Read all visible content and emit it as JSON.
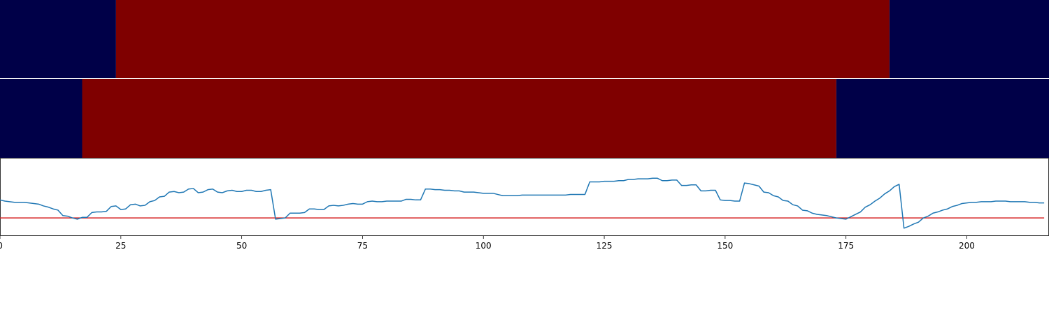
{
  "chart_data": [
    {
      "type": "heatmap",
      "panel": "top",
      "xlim": [
        0,
        217
      ],
      "colors": {
        "low": "#000048",
        "high": "#7f0000"
      },
      "segments": [
        {
          "start": 0,
          "end": 24,
          "level": "low"
        },
        {
          "start": 24,
          "end": 184,
          "level": "high"
        },
        {
          "start": 184,
          "end": 217,
          "level": "low"
        }
      ]
    },
    {
      "type": "heatmap",
      "panel": "middle",
      "xlim": [
        0,
        217
      ],
      "colors": {
        "low": "#000048",
        "high": "#7f0000"
      },
      "segments": [
        {
          "start": 0,
          "end": 17,
          "level": "low"
        },
        {
          "start": 17,
          "end": 173,
          "level": "high"
        },
        {
          "start": 173,
          "end": 217,
          "level": "low"
        }
      ]
    },
    {
      "type": "line",
      "panel": "bottom",
      "xlim": [
        0,
        217
      ],
      "ylim": [
        -0.3,
        1.0
      ],
      "x_ticks": [
        0,
        25,
        50,
        75,
        100,
        125,
        150,
        175,
        200
      ],
      "threshold": 0,
      "colors": {
        "line": "#1f77b4",
        "threshold": "#d62728"
      },
      "x": [
        0,
        1,
        2,
        3,
        4,
        5,
        6,
        7,
        8,
        9,
        10,
        11,
        12,
        13,
        14,
        15,
        16,
        17,
        18,
        19,
        20,
        21,
        22,
        23,
        24,
        25,
        26,
        27,
        28,
        29,
        30,
        31,
        32,
        33,
        34,
        35,
        36,
        37,
        38,
        39,
        40,
        41,
        42,
        43,
        44,
        45,
        46,
        47,
        48,
        49,
        50,
        51,
        52,
        53,
        54,
        55,
        56,
        57,
        58,
        59,
        60,
        61,
        62,
        63,
        64,
        65,
        66,
        67,
        68,
        69,
        70,
        71,
        72,
        73,
        74,
        75,
        76,
        77,
        78,
        79,
        80,
        81,
        82,
        83,
        84,
        85,
        86,
        87,
        88,
        89,
        90,
        91,
        92,
        93,
        94,
        95,
        96,
        97,
        98,
        99,
        100,
        101,
        102,
        103,
        104,
        105,
        106,
        107,
        108,
        109,
        110,
        111,
        112,
        113,
        114,
        115,
        116,
        117,
        118,
        119,
        120,
        121,
        122,
        123,
        124,
        125,
        126,
        127,
        128,
        129,
        130,
        131,
        132,
        133,
        134,
        135,
        136,
        137,
        138,
        139,
        140,
        141,
        142,
        143,
        144,
        145,
        146,
        147,
        148,
        149,
        150,
        151,
        152,
        153,
        154,
        155,
        156,
        157,
        158,
        159,
        160,
        161,
        162,
        163,
        164,
        165,
        166,
        167,
        168,
        169,
        170,
        171,
        172,
        173,
        174,
        175,
        176,
        177,
        178,
        179,
        180,
        181,
        182,
        183,
        184,
        185,
        186,
        187,
        188,
        189,
        190,
        191,
        192,
        193,
        194,
        195,
        196,
        197,
        198,
        199,
        200,
        201,
        202,
        203,
        204,
        205,
        206,
        207,
        208,
        209,
        210,
        211,
        212,
        213,
        214,
        215,
        216
      ],
      "y": [
        0.3,
        0.28,
        0.27,
        0.26,
        0.26,
        0.26,
        0.25,
        0.24,
        0.23,
        0.2,
        0.18,
        0.15,
        0.13,
        0.04,
        0.03,
        0.0,
        -0.02,
        0.01,
        0.01,
        0.09,
        0.1,
        0.1,
        0.11,
        0.19,
        0.2,
        0.14,
        0.15,
        0.22,
        0.23,
        0.2,
        0.21,
        0.27,
        0.29,
        0.35,
        0.36,
        0.43,
        0.44,
        0.42,
        0.43,
        0.48,
        0.49,
        0.42,
        0.43,
        0.47,
        0.48,
        0.43,
        0.42,
        0.45,
        0.46,
        0.44,
        0.44,
        0.46,
        0.46,
        0.44,
        0.44,
        0.46,
        0.47,
        -0.02,
        -0.01,
        0.0,
        0.08,
        0.08,
        0.08,
        0.09,
        0.15,
        0.15,
        0.14,
        0.14,
        0.2,
        0.21,
        0.2,
        0.21,
        0.23,
        0.24,
        0.23,
        0.23,
        0.27,
        0.28,
        0.27,
        0.27,
        0.28,
        0.28,
        0.28,
        0.28,
        0.31,
        0.31,
        0.3,
        0.3,
        0.48,
        0.48,
        0.47,
        0.47,
        0.46,
        0.46,
        0.45,
        0.45,
        0.43,
        0.43,
        0.43,
        0.42,
        0.41,
        0.41,
        0.41,
        0.39,
        0.37,
        0.37,
        0.37,
        0.37,
        0.38,
        0.38,
        0.38,
        0.38,
        0.38,
        0.38,
        0.38,
        0.38,
        0.38,
        0.38,
        0.39,
        0.39,
        0.39,
        0.39,
        0.6,
        0.6,
        0.6,
        0.61,
        0.61,
        0.61,
        0.62,
        0.62,
        0.64,
        0.64,
        0.65,
        0.65,
        0.65,
        0.66,
        0.66,
        0.62,
        0.62,
        0.63,
        0.63,
        0.54,
        0.54,
        0.55,
        0.55,
        0.45,
        0.45,
        0.46,
        0.46,
        0.3,
        0.29,
        0.29,
        0.28,
        0.28,
        0.58,
        0.57,
        0.55,
        0.53,
        0.43,
        0.42,
        0.37,
        0.35,
        0.29,
        0.28,
        0.22,
        0.2,
        0.13,
        0.12,
        0.08,
        0.06,
        0.05,
        0.04,
        0.02,
        0.0,
        -0.01,
        -0.02,
        0.02,
        0.06,
        0.1,
        0.18,
        0.22,
        0.28,
        0.33,
        0.4,
        0.45,
        0.52,
        0.56,
        -0.17,
        -0.14,
        -0.1,
        -0.07,
        0.0,
        0.03,
        0.08,
        0.1,
        0.13,
        0.15,
        0.19,
        0.21,
        0.24,
        0.25,
        0.26,
        0.26,
        0.27,
        0.27,
        0.27,
        0.28,
        0.28,
        0.28,
        0.27,
        0.27,
        0.27,
        0.27,
        0.26,
        0.26,
        0.25,
        0.25
      ]
    }
  ]
}
